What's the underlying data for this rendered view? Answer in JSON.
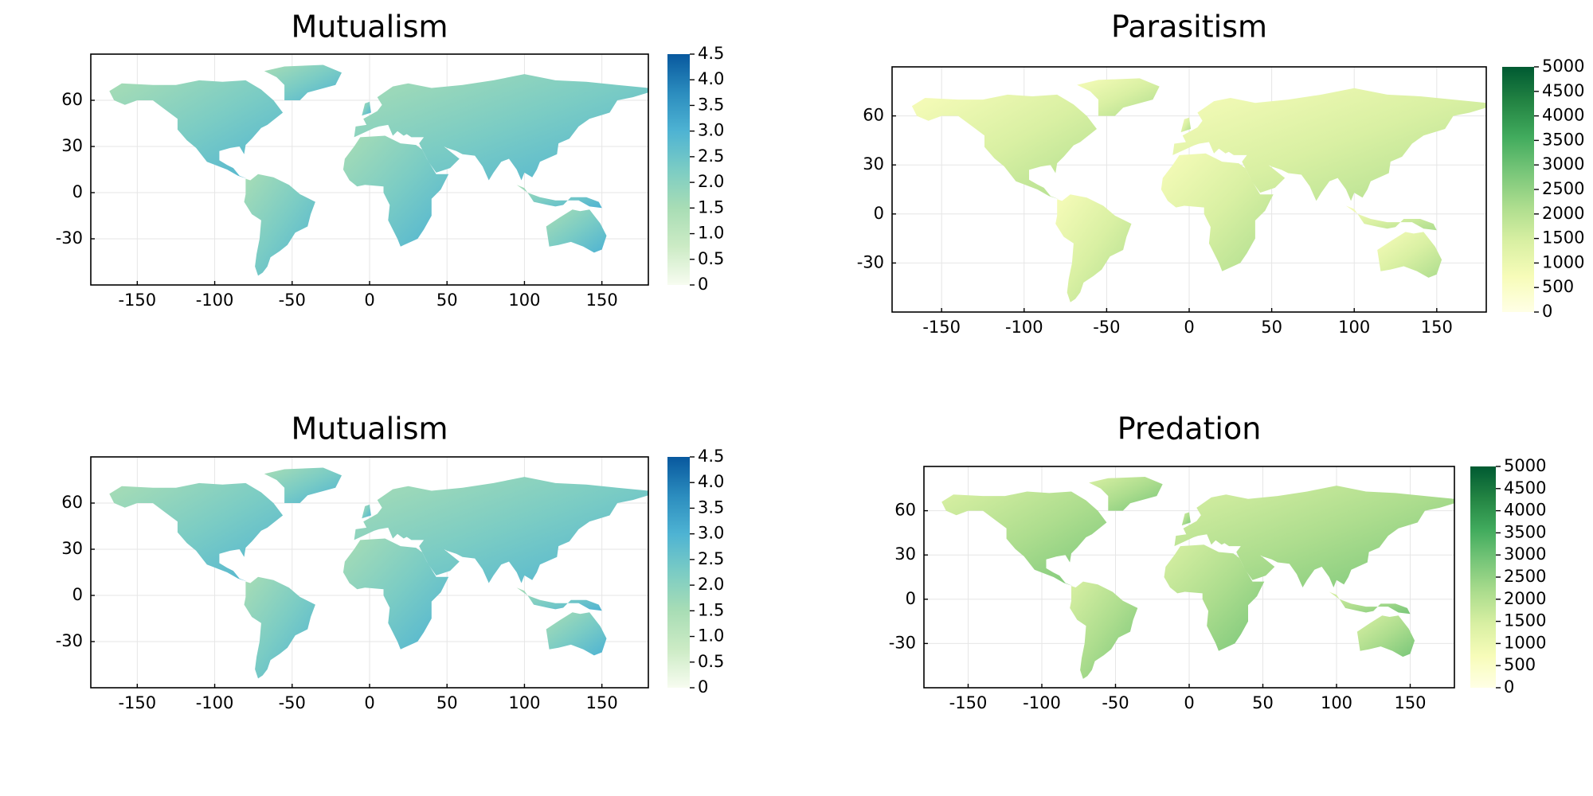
{
  "chart_data": [
    {
      "type": "heatmap",
      "title": "Mutualism",
      "xticks": [
        -150,
        -100,
        -50,
        0,
        50,
        100,
        150
      ],
      "yticks": [
        60,
        30,
        0,
        -30
      ],
      "xlim": [
        -180,
        180
      ],
      "ylim": [
        -60,
        90
      ],
      "colormap": "GnBu",
      "colors": [
        "#f7fcf0",
        "#ccebc5",
        "#a8ddb5",
        "#7bccc4",
        "#4eb3d3",
        "#2b8cbe",
        "#08589e"
      ],
      "colorbar": {
        "min": 0,
        "max": 4.5,
        "ticks": [
          0,
          0.5,
          1.0,
          1.5,
          2.0,
          2.5,
          3.0,
          3.5,
          4.0,
          4.5
        ],
        "tick_labels": [
          "0",
          "0.5",
          "1.0",
          "1.5",
          "2.0",
          "2.5",
          "3.0",
          "3.5",
          "4.0",
          "4.5"
        ]
      },
      "typical_level": 2.4
    },
    {
      "type": "heatmap",
      "title": "Parasitism",
      "xticks": [
        -150,
        -100,
        -50,
        0,
        50,
        100,
        150
      ],
      "yticks": [
        60,
        30,
        0,
        -30
      ],
      "xlim": [
        -180,
        180
      ],
      "ylim": [
        -60,
        90
      ],
      "colormap": "YlGn",
      "colors": [
        "#ffffe5",
        "#f7fcb9",
        "#d9f0a3",
        "#addd8e",
        "#78c679",
        "#41ab5d",
        "#238443",
        "#005a32"
      ],
      "colorbar": {
        "min": 0,
        "max": 5000,
        "ticks": [
          0,
          500,
          1000,
          1500,
          2000,
          2500,
          3000,
          3500,
          4000,
          4500,
          5000
        ],
        "tick_labels": [
          "0",
          "500",
          "1000",
          "1500",
          "2000",
          "2500",
          "3000",
          "3500",
          "4000",
          "4500",
          "5000"
        ]
      },
      "typical_level": 1500
    },
    {
      "type": "heatmap",
      "title": "Mutualism",
      "xticks": [
        -150,
        -100,
        -50,
        0,
        50,
        100,
        150
      ],
      "yticks": [
        60,
        30,
        0,
        -30
      ],
      "xlim": [
        -180,
        180
      ],
      "ylim": [
        -60,
        90
      ],
      "colormap": "GnBu",
      "colors": [
        "#f7fcf0",
        "#ccebc5",
        "#a8ddb5",
        "#7bccc4",
        "#4eb3d3",
        "#2b8cbe",
        "#08589e"
      ],
      "colorbar": {
        "min": 0,
        "max": 4.5,
        "ticks": [
          0,
          0.5,
          1.0,
          1.5,
          2.0,
          2.5,
          3.0,
          3.5,
          4.0,
          4.5
        ],
        "tick_labels": [
          "0",
          "0.5",
          "1.0",
          "1.5",
          "2.0",
          "2.5",
          "3.0",
          "3.5",
          "4.0",
          "4.5"
        ]
      },
      "typical_level": 2.2
    },
    {
      "type": "heatmap",
      "title": "Predation",
      "xticks": [
        -150,
        -100,
        -50,
        0,
        50,
        100,
        150
      ],
      "yticks": [
        60,
        30,
        0,
        -30
      ],
      "xlim": [
        -180,
        180
      ],
      "ylim": [
        -60,
        90
      ],
      "colormap": "YlGn",
      "colors": [
        "#ffffe5",
        "#f7fcb9",
        "#d9f0a3",
        "#addd8e",
        "#78c679",
        "#41ab5d",
        "#238443",
        "#005a32"
      ],
      "colorbar": {
        "min": 0,
        "max": 5000,
        "ticks": [
          0,
          500,
          1000,
          1500,
          2000,
          2500,
          3000,
          3500,
          4000,
          4500,
          5000
        ],
        "tick_labels": [
          "0",
          "500",
          "1000",
          "1500",
          "2000",
          "2500",
          "3000",
          "3500",
          "4000",
          "4500",
          "5000"
        ]
      },
      "typical_level": 1800
    }
  ]
}
